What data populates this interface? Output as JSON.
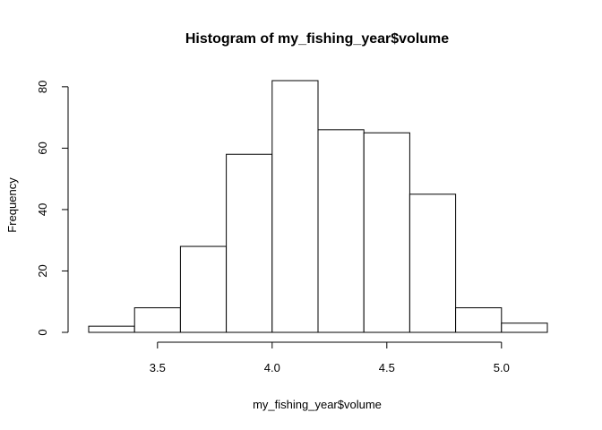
{
  "chart_data": {
    "type": "bar",
    "title": "Histogram of my_fishing_year$volume",
    "xlabel": "my_fishing_year$volume",
    "ylabel": "Frequency",
    "bins": [
      {
        "from": 3.2,
        "to": 3.4,
        "count": 2
      },
      {
        "from": 3.4,
        "to": 3.6,
        "count": 8
      },
      {
        "from": 3.6,
        "to": 3.8,
        "count": 28
      },
      {
        "from": 3.8,
        "to": 4.0,
        "count": 58
      },
      {
        "from": 4.0,
        "to": 4.2,
        "count": 82
      },
      {
        "from": 4.2,
        "to": 4.4,
        "count": 66
      },
      {
        "from": 4.4,
        "to": 4.6,
        "count": 65
      },
      {
        "from": 4.6,
        "to": 4.8,
        "count": 45
      },
      {
        "from": 4.8,
        "to": 5.0,
        "count": 8
      },
      {
        "from": 5.0,
        "to": 5.2,
        "count": 3
      }
    ],
    "xticks": [
      {
        "value": 3.5,
        "label": "3.5"
      },
      {
        "value": 4.0,
        "label": "4.0"
      },
      {
        "value": 4.5,
        "label": "4.5"
      },
      {
        "value": 5.0,
        "label": "5.0"
      }
    ],
    "yticks": [
      {
        "value": 0,
        "label": "0"
      },
      {
        "value": 20,
        "label": "20"
      },
      {
        "value": 40,
        "label": "40"
      },
      {
        "value": 60,
        "label": "60"
      },
      {
        "value": 80,
        "label": "80"
      }
    ],
    "xlim": [
      3.2,
      5.2
    ],
    "ylim": [
      0,
      82
    ],
    "grid": false,
    "bar_fill": "#ffffff",
    "bar_stroke": "#000000"
  }
}
